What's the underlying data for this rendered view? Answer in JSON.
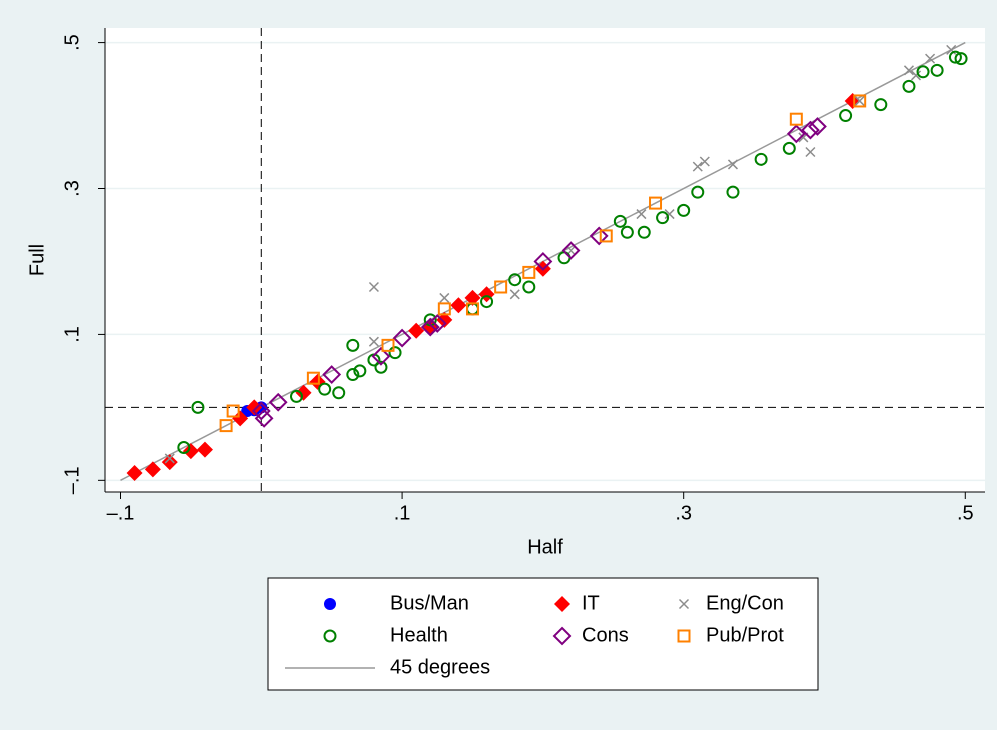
{
  "chart_data": {
    "type": "scatter",
    "x_label": "Half",
    "y_label": "Full",
    "xlim": [
      -0.111,
      0.514
    ],
    "ylim": [
      -0.116,
      0.52
    ],
    "xticks": [
      {
        "value": -0.1,
        "label": "–.1"
      },
      {
        "value": 0.1,
        "label": ".1"
      },
      {
        "value": 0.3,
        "label": ".3"
      },
      {
        "value": 0.5,
        "label": ".5"
      }
    ],
    "yticks": [
      {
        "value": -0.1,
        "label": "–.1"
      },
      {
        "value": 0.1,
        "label": ".1"
      },
      {
        "value": 0.3,
        "label": ".3"
      },
      {
        "value": 0.5,
        "label": ".5"
      }
    ],
    "grid": true,
    "xline": 0,
    "yline": 0,
    "series": [
      {
        "name": "Bus/Man",
        "color": "#0000ff",
        "marker": "circle-filled",
        "x": [
          -0.01,
          -0.005,
          0.0
        ],
        "values": [
          -0.005,
          -0.004,
          0.0
        ]
      },
      {
        "name": "IT",
        "color": "#ff0000",
        "marker": "diamond-filled",
        "x": [
          -0.09,
          -0.077,
          -0.065,
          -0.05,
          -0.04,
          -0.015,
          -0.005,
          0.03,
          0.04,
          0.11,
          0.12,
          0.13,
          0.14,
          0.15,
          0.16,
          0.2,
          0.42
        ],
        "values": [
          -0.09,
          -0.085,
          -0.075,
          -0.06,
          -0.058,
          -0.015,
          0.0,
          0.02,
          0.035,
          0.105,
          0.11,
          0.12,
          0.14,
          0.15,
          0.155,
          0.19,
          0.42
        ]
      },
      {
        "name": "Eng/Con",
        "color": "#8c8c8c",
        "marker": "x",
        "x": [
          -0.065,
          0.08,
          0.08,
          0.13,
          0.18,
          0.22,
          0.27,
          0.29,
          0.31,
          0.315,
          0.335,
          0.385,
          0.39,
          0.425,
          0.46,
          0.465,
          0.475,
          0.49
        ],
        "values": [
          -0.07,
          0.09,
          0.165,
          0.15,
          0.155,
          0.215,
          0.265,
          0.265,
          0.33,
          0.337,
          0.333,
          0.37,
          0.35,
          0.42,
          0.462,
          0.455,
          0.478,
          0.49
        ]
      },
      {
        "name": "Health",
        "color": "#008000",
        "marker": "circle",
        "x": [
          -0.055,
          -0.045,
          0.025,
          0.045,
          0.055,
          0.065,
          0.065,
          0.07,
          0.08,
          0.085,
          0.095,
          0.12,
          0.15,
          0.16,
          0.18,
          0.19,
          0.215,
          0.255,
          0.26,
          0.272,
          0.285,
          0.3,
          0.31,
          0.335,
          0.355,
          0.375,
          0.415,
          0.44,
          0.46,
          0.47,
          0.48,
          0.493,
          0.497
        ],
        "values": [
          -0.055,
          0.0,
          0.015,
          0.025,
          0.02,
          0.045,
          0.085,
          0.05,
          0.065,
          0.055,
          0.075,
          0.12,
          0.135,
          0.145,
          0.175,
          0.165,
          0.205,
          0.255,
          0.24,
          0.24,
          0.26,
          0.27,
          0.295,
          0.295,
          0.34,
          0.355,
          0.4,
          0.415,
          0.44,
          0.46,
          0.462,
          0.48,
          0.478
        ]
      },
      {
        "name": "Cons",
        "color": "#800080",
        "marker": "diamond",
        "x": [
          0.0,
          0.002,
          0.012,
          0.05,
          0.085,
          0.1,
          0.12,
          0.125,
          0.2,
          0.22,
          0.24,
          0.38,
          0.39,
          0.395
        ],
        "values": [
          -0.005,
          -0.015,
          0.007,
          0.045,
          0.07,
          0.095,
          0.11,
          0.115,
          0.2,
          0.215,
          0.235,
          0.375,
          0.38,
          0.385
        ]
      },
      {
        "name": "Pub/Prot",
        "color": "#ff8000",
        "marker": "square",
        "x": [
          -0.025,
          -0.02,
          0.037,
          0.09,
          0.13,
          0.15,
          0.17,
          0.19,
          0.245,
          0.28,
          0.38,
          0.425
        ],
        "values": [
          -0.025,
          -0.005,
          0.04,
          0.085,
          0.135,
          0.135,
          0.165,
          0.185,
          0.235,
          0.28,
          0.395,
          0.42
        ]
      }
    ],
    "fit_line": {
      "name": "45 degrees",
      "color": "#999999",
      "x": [
        -0.1,
        0.5
      ],
      "values": [
        -0.1,
        0.5
      ]
    }
  }
}
